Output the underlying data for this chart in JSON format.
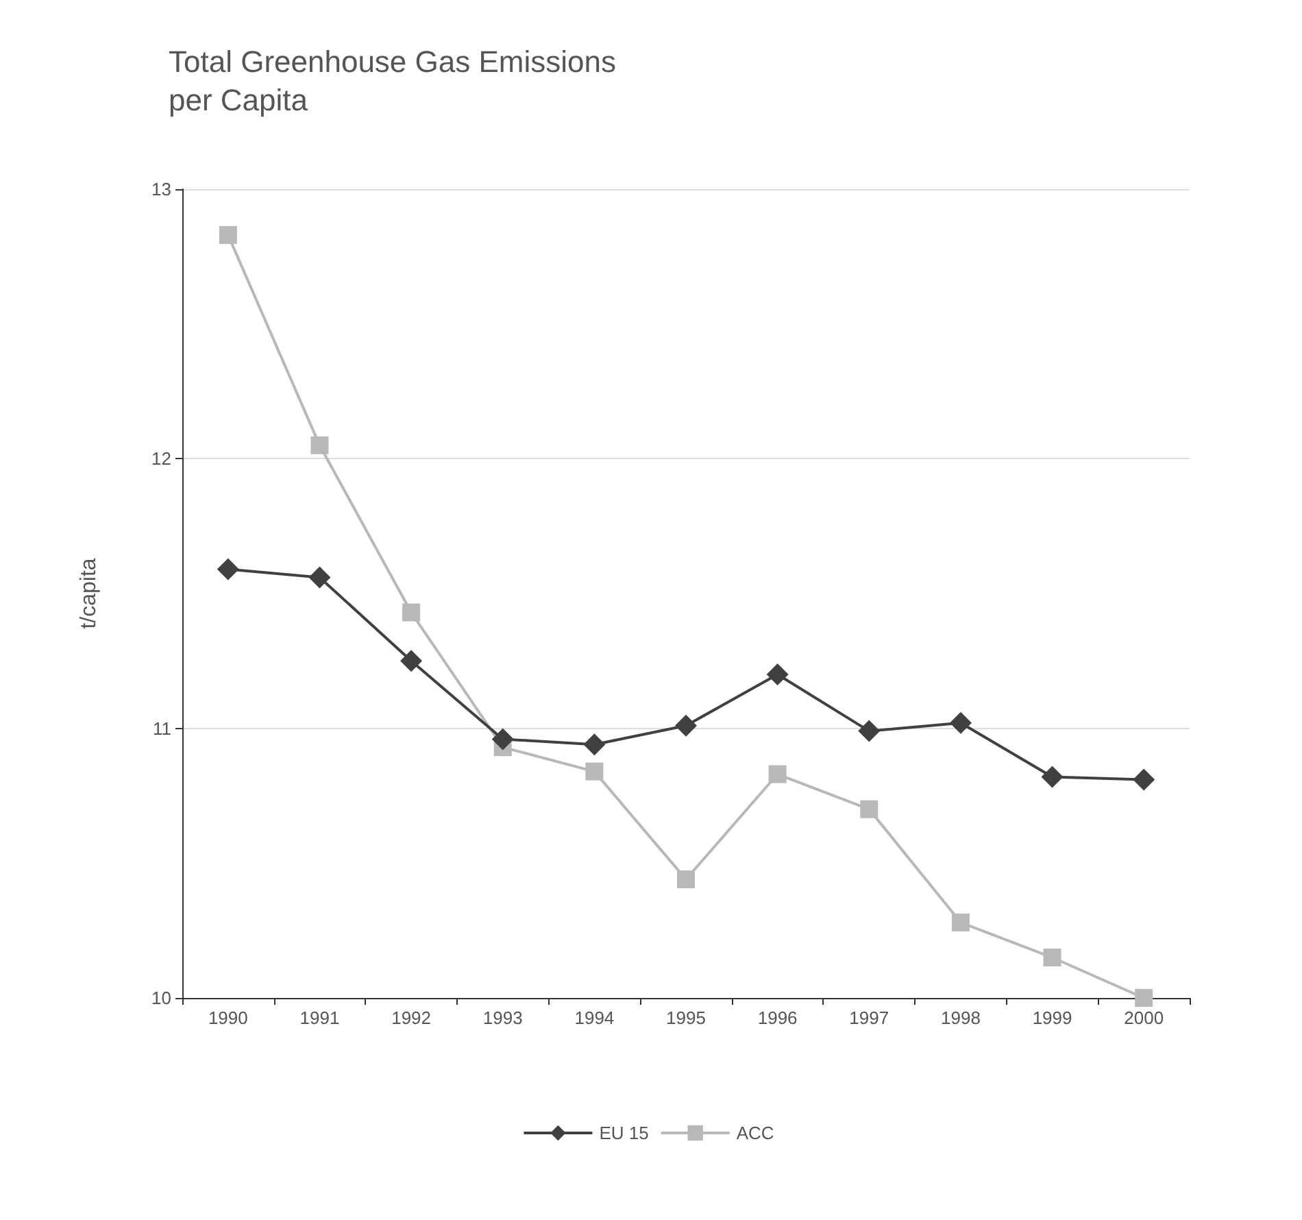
{
  "chart_data": {
    "type": "line",
    "title": "Total Greenhouse Gas Emissions\nper Capita",
    "ylabel": "t/capita",
    "categories": [
      "1990",
      "1991",
      "1992",
      "1993",
      "1994",
      "1995",
      "1996",
      "1997",
      "1998",
      "1999",
      "2000"
    ],
    "series": [
      {
        "name": "EU 15",
        "color": "#404040",
        "marker": "diamond",
        "values": [
          11.59,
          11.56,
          11.25,
          10.96,
          10.94,
          11.01,
          11.2,
          10.99,
          11.02,
          10.82,
          10.81
        ]
      },
      {
        "name": "ACC",
        "color": "#b8b8b8",
        "marker": "square",
        "values": [
          12.83,
          12.05,
          11.43,
          10.93,
          10.84,
          10.44,
          10.83,
          10.7,
          10.28,
          10.15,
          10.0
        ]
      }
    ],
    "ylim": [
      10,
      13
    ],
    "yticks": [
      10,
      11,
      12,
      13
    ],
    "grid": "y",
    "legend": "bottom",
    "line_style": "solid"
  }
}
